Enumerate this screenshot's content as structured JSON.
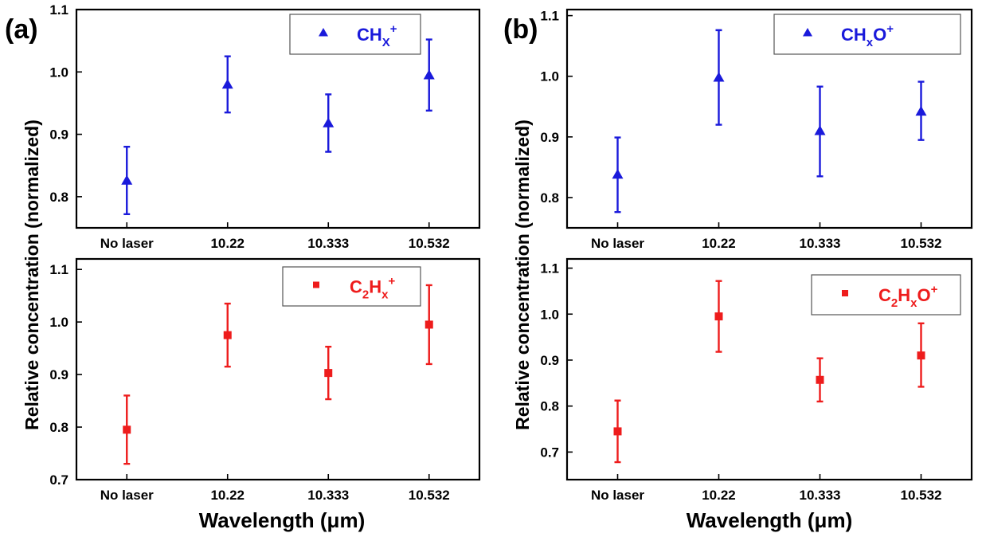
{
  "colors": {
    "blue": "#1a1adb",
    "red": "#ee1c1c"
  },
  "panel_labels": [
    "(a)",
    "(b)"
  ],
  "ylabel": "Relative concentration (normalized)",
  "xlabel": "Wavelength (μm)",
  "chart_data": [
    {
      "type": "scatter",
      "panel": "(a)",
      "position": "top",
      "marker": "triangle",
      "color": "#1a1adb",
      "legend": {
        "base": "CH",
        "sub": "X",
        "sup": "+"
      },
      "categories": [
        "No laser",
        "10.22",
        "10.333",
        "10.532"
      ],
      "values": [
        0.826,
        0.98,
        0.918,
        0.995
      ],
      "err_low": [
        0.772,
        0.935,
        0.872,
        0.938
      ],
      "err_high": [
        0.88,
        1.025,
        0.964,
        1.052
      ],
      "yticks": [
        "0.8",
        "0.9",
        "1.0",
        "1.1"
      ],
      "ylim": [
        0.75,
        1.1
      ],
      "grid": false,
      "legend_placement": "top-right"
    },
    {
      "type": "scatter",
      "panel": "(a)",
      "position": "bottom",
      "marker": "square",
      "color": "#ee1c1c",
      "legend": {
        "base": "C",
        "sub1": "2",
        "mid": "H",
        "sub": "x",
        "sup": "+"
      },
      "categories": [
        "No laser",
        "10.22",
        "10.333",
        "10.532"
      ],
      "values": [
        0.795,
        0.975,
        0.903,
        0.995
      ],
      "err_low": [
        0.73,
        0.915,
        0.853,
        0.92
      ],
      "err_high": [
        0.86,
        1.035,
        0.953,
        1.07
      ],
      "yticks": [
        "0.7",
        "0.8",
        "0.9",
        "1.0",
        "1.1"
      ],
      "ylim": [
        0.7,
        1.12
      ],
      "grid": false,
      "legend_placement": "top-right"
    },
    {
      "type": "scatter",
      "panel": "(b)",
      "position": "top",
      "marker": "triangle",
      "color": "#1a1adb",
      "legend": {
        "base": "CH",
        "sub": "x",
        "mid2": "O",
        "sup": "+"
      },
      "categories": [
        "No laser",
        "10.22",
        "10.333",
        "10.532"
      ],
      "values": [
        0.838,
        0.998,
        0.91,
        0.942
      ],
      "err_low": [
        0.776,
        0.92,
        0.835,
        0.895
      ],
      "err_high": [
        0.899,
        1.076,
        0.983,
        0.991
      ],
      "yticks": [
        "0.8",
        "0.9",
        "1.0",
        "1.1"
      ],
      "ylim": [
        0.75,
        1.11
      ],
      "grid": false,
      "legend_placement": "top-right"
    },
    {
      "type": "scatter",
      "panel": "(b)",
      "position": "bottom",
      "marker": "square",
      "color": "#ee1c1c",
      "legend": {
        "base": "C",
        "sub1": "2",
        "mid": "H",
        "sub": "x",
        "mid2": "O",
        "sup": "+"
      },
      "categories": [
        "No laser",
        "10.22",
        "10.333",
        "10.532"
      ],
      "values": [
        0.745,
        0.995,
        0.857,
        0.91
      ],
      "err_low": [
        0.678,
        0.918,
        0.81,
        0.842
      ],
      "err_high": [
        0.812,
        1.072,
        0.904,
        0.98
      ],
      "yticks": [
        "0.7",
        "0.8",
        "0.9",
        "1.0",
        "1.1"
      ],
      "ylim": [
        0.64,
        1.12
      ],
      "grid": false,
      "legend_placement": "top-right"
    }
  ]
}
